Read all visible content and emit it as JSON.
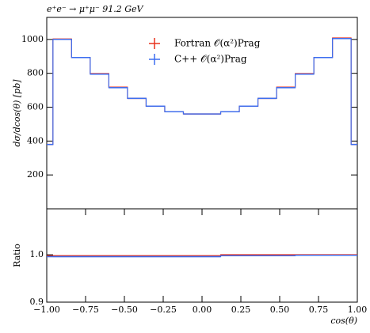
{
  "chart_data": [
    {
      "type": "histogram",
      "title": "e⁺e⁻ → μ⁺μ⁻ 91.2 GeV",
      "ylabel": "dσ/dcos(θ) [pb]",
      "bins": [
        -1,
        -0.96,
        -0.84,
        -0.72,
        -0.6,
        -0.48,
        -0.36,
        -0.24,
        -0.12,
        0.12,
        0.24,
        0.36,
        0.48,
        0.6,
        0.72,
        0.84,
        0.96,
        1
      ],
      "series": [
        {
          "name": "Fortran 𝒪(α²)Prag",
          "color": "#e8321e",
          "values": [
            380,
            1002,
            893,
            798,
            718,
            652,
            606,
            573,
            560,
            573,
            606,
            652,
            718,
            798,
            893,
            1008,
            380
          ]
        },
        {
          "name": "C++ 𝒪(α²)Prag",
          "color": "#3c6ef0",
          "values": [
            380,
            1000,
            893,
            795,
            715,
            652,
            606,
            573,
            560,
            573,
            606,
            652,
            715,
            795,
            893,
            1005,
            380
          ]
        }
      ],
      "xlim": [
        -1,
        1
      ],
      "ylim": [
        0,
        1130
      ],
      "yticks": [
        200,
        400,
        600,
        800,
        1000
      ],
      "legend": "top"
    },
    {
      "type": "histogram",
      "ylabel": "Ratio",
      "xlabel": "cos(θ)",
      "bins": [
        -1,
        -0.96,
        -0.84,
        -0.72,
        -0.6,
        -0.48,
        -0.36,
        -0.24,
        -0.12,
        0.12,
        0.24,
        0.36,
        0.48,
        0.6,
        0.72,
        0.84,
        0.96,
        1
      ],
      "series": [
        {
          "name": "Fortran 𝒪(α²)Prag",
          "color": "#e8321e",
          "values": [
            0.998,
            0.998,
            0.998,
            0.998,
            0.998,
            0.998,
            0.998,
            0.998,
            0.998,
            1.0,
            1.0,
            1.0,
            1.0,
            1.0,
            1.0,
            1.0,
            1.0
          ]
        },
        {
          "name": "C++ 𝒪(α²)Prag",
          "color": "#3c6ef0",
          "values": [
            0.996,
            0.996,
            0.996,
            0.996,
            0.996,
            0.996,
            0.996,
            0.996,
            0.996,
            0.998,
            0.998,
            0.998,
            0.998,
            0.999,
            0.999,
            0.999,
            0.999
          ]
        }
      ],
      "xlim": [
        -1,
        1
      ],
      "ylim": [
        0.9,
        1.097
      ],
      "yticks": [
        0.9,
        {
          "value": 1,
          "label": "1.0"
        }
      ],
      "xticks": [
        {
          "value": -1,
          "label": "−1.00"
        },
        {
          "value": -0.75,
          "label": "−0.75"
        },
        {
          "value": -0.5,
          "label": "−0.50"
        },
        {
          "value": -0.25,
          "label": "−0.25"
        },
        {
          "value": 0,
          "label": "0.00"
        },
        {
          "value": 0.25,
          "label": "0.25"
        },
        {
          "value": 0.5,
          "label": "0.50"
        },
        {
          "value": 0.75,
          "label": "0.75"
        },
        {
          "value": 1,
          "label": "1.00"
        }
      ]
    }
  ]
}
